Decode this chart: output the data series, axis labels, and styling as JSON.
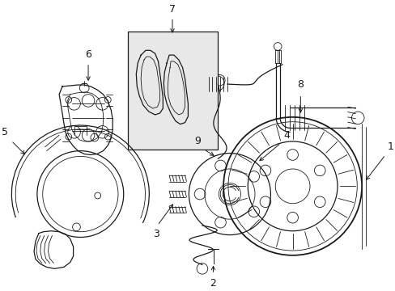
{
  "background_color": "#ffffff",
  "line_color": "#1a1a1a",
  "figsize": [
    4.89,
    3.6
  ],
  "dpi": 100,
  "box_color": "#e8e8e8",
  "label_fontsize": 9
}
